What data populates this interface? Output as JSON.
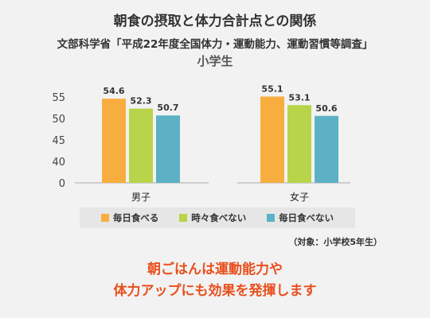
{
  "header": {
    "title": "朝食の摂取と体力合計点との関係",
    "source": "文部科学省「平成22年度全国体力・運動能力、運動習慣等調査」",
    "subgroup": "小学生"
  },
  "legend": [
    {
      "label": "毎日食べる",
      "color": "#f8ae3f"
    },
    {
      "label": "時々食べない",
      "color": "#b8d44a"
    },
    {
      "label": "毎日食べない",
      "color": "#5cb2c4"
    }
  ],
  "note": "（対象：小学校5年生）",
  "message": {
    "line1": "朝ごはんは運動能力や",
    "line2": "体力アップにも効果を発揮します"
  },
  "chart_data": {
    "type": "bar",
    "categories": [
      "男子",
      "女子"
    ],
    "series": [
      {
        "name": "毎日食べる",
        "values": [
          54.6,
          55.1
        ],
        "color": "#f8ae3f"
      },
      {
        "name": "時々食べない",
        "values": [
          52.3,
          53.1
        ],
        "color": "#b8d44a"
      },
      {
        "name": "毎日食べない",
        "values": [
          50.7,
          50.6
        ],
        "color": "#5cb2c4"
      }
    ],
    "yticks": [
      "55",
      "50",
      "45",
      "40",
      "0"
    ],
    "axis_break": true,
    "grid": false,
    "legend_position": "bottom"
  }
}
